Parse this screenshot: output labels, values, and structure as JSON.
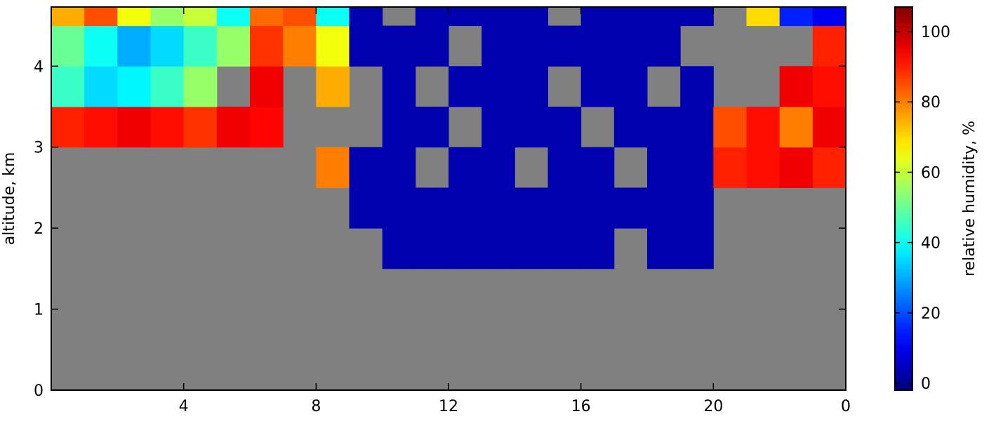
{
  "chart_data": {
    "type": "heatmap",
    "ylabel": "altitude, km",
    "xlim": [
      0,
      24
    ],
    "xticks": [
      4,
      8,
      12,
      16,
      20,
      {
        "value": 24,
        "label": "0"
      }
    ],
    "ylim": [
      0,
      4.73
    ],
    "yticks": [
      0,
      1,
      2,
      3,
      4
    ],
    "background": "#808080",
    "colormap": "jet",
    "xbins": [
      0,
      1,
      2,
      3,
      4,
      5,
      6,
      7,
      8,
      9,
      10,
      11,
      12,
      13,
      14,
      15,
      16,
      17,
      18,
      19,
      20,
      21,
      22,
      23,
      24
    ],
    "ybins": [
      1.5,
      2,
      2.5,
      3,
      3.5,
      4,
      4.5,
      5
    ],
    "z": [
      [
        null,
        null,
        null,
        null,
        null,
        null,
        null,
        null,
        null,
        null,
        3,
        3,
        3,
        3,
        3,
        3,
        3,
        null,
        3,
        3,
        null,
        null,
        null,
        null
      ],
      [
        null,
        null,
        null,
        null,
        null,
        null,
        null,
        null,
        null,
        3,
        3,
        3,
        3,
        3,
        3,
        3,
        3,
        3,
        3,
        3,
        null,
        null,
        null,
        null
      ],
      [
        null,
        null,
        null,
        null,
        null,
        null,
        null,
        null,
        80,
        3,
        3,
        null,
        3,
        3,
        null,
        3,
        3,
        null,
        3,
        3,
        90,
        92,
        95,
        90
      ],
      [
        90,
        92,
        95,
        92,
        88,
        95,
        93,
        null,
        null,
        null,
        3,
        3,
        null,
        3,
        3,
        3,
        null,
        3,
        3,
        3,
        85,
        92,
        80,
        95
      ],
      [
        45,
        35,
        38,
        45,
        55,
        null,
        95,
        null,
        75,
        null,
        3,
        null,
        3,
        3,
        3,
        null,
        3,
        3,
        null,
        3,
        null,
        null,
        95,
        92
      ],
      [
        50,
        40,
        30,
        35,
        45,
        55,
        88,
        80,
        65,
        3,
        3,
        3,
        null,
        3,
        3,
        3,
        3,
        3,
        3,
        null,
        null,
        null,
        null,
        90
      ],
      [
        75,
        85,
        65,
        55,
        60,
        40,
        82,
        85,
        40,
        3,
        null,
        3,
        3,
        3,
        3,
        null,
        3,
        3,
        3,
        3,
        null,
        70,
        15,
        10
      ]
    ],
    "colorbar": {
      "label": "relative humidity, %",
      "lim": [
        -2,
        107
      ],
      "ticks": [
        0,
        20,
        40,
        60,
        80,
        100
      ]
    }
  }
}
